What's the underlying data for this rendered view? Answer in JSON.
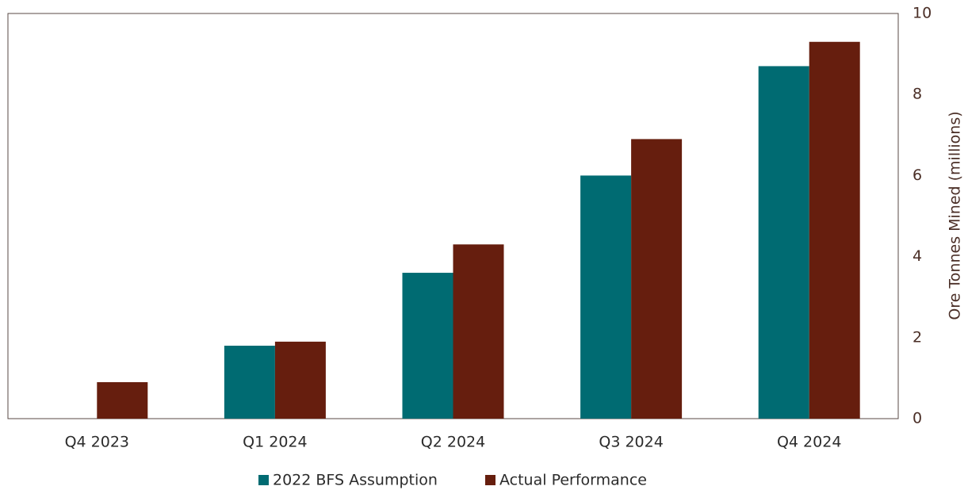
{
  "chart_data": {
    "type": "bar",
    "y_axis_label": "Ore Tonnes Mined (millions)",
    "categories": [
      "Q4 2023",
      "Q1 2024",
      "Q2 2024",
      "Q3 2024",
      "Q4 2024"
    ],
    "series": [
      {
        "name": "2022 BFS Assumption",
        "color": "#006b72",
        "values": [
          null,
          1.8,
          3.6,
          6.0,
          8.7
        ]
      },
      {
        "name": "Actual Performance",
        "color": "#661e0e",
        "values": [
          0.9,
          1.9,
          4.3,
          6.9,
          9.3
        ]
      }
    ],
    "ylim": [
      0,
      10
    ],
    "yticks": [
      0,
      2,
      4,
      6,
      8,
      10
    ],
    "y_axis_side": "right",
    "grid": false,
    "legend": "bottom"
  }
}
